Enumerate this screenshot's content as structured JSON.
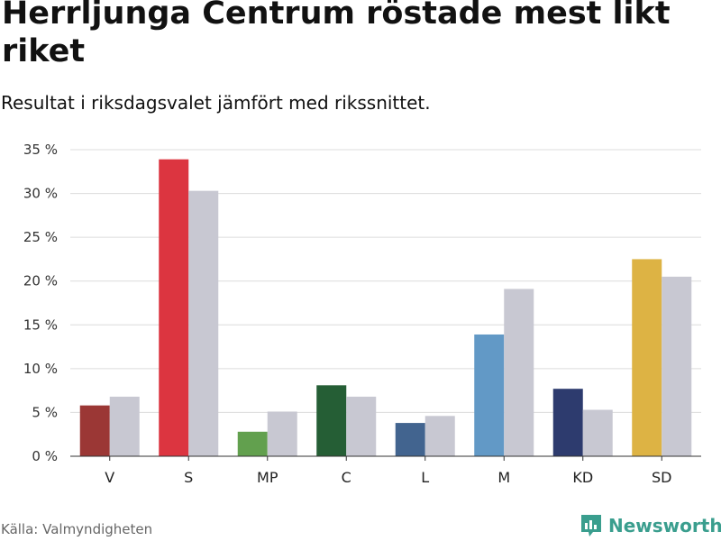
{
  "chart_data": {
    "type": "bar",
    "title": "Herrljunga Centrum röstade mest likt riket",
    "subtitle": "Resultat i riksdagsvalet jämfört med rikssnittet.",
    "categories": [
      "V",
      "S",
      "MP",
      "C",
      "L",
      "M",
      "KD",
      "SD"
    ],
    "series": [
      {
        "name": "Herrljunga Centrum",
        "values": [
          5.8,
          33.9,
          2.8,
          8.1,
          3.8,
          13.9,
          7.7,
          22.5
        ],
        "colors": [
          "#9b3735",
          "#dc3540",
          "#62a04e",
          "#255e35",
          "#42648f",
          "#6299c6",
          "#2d3b6e",
          "#ddb344"
        ]
      },
      {
        "name": "Riket",
        "values": [
          6.8,
          30.3,
          5.1,
          6.8,
          4.6,
          19.1,
          5.3,
          20.5
        ],
        "color": "#c8c8d2"
      }
    ],
    "y_ticks": [
      "0 %",
      "5 %",
      "10 %",
      "15 %",
      "20 %",
      "25 %",
      "30 %",
      "35 %"
    ],
    "ylim": [
      0,
      35
    ],
    "xlabel": "",
    "ylabel": "",
    "grid": true
  },
  "footer": {
    "source": "Källa: Valmyndigheten",
    "brand": "Newsworthy",
    "brand_color": "#3a9e8e"
  }
}
